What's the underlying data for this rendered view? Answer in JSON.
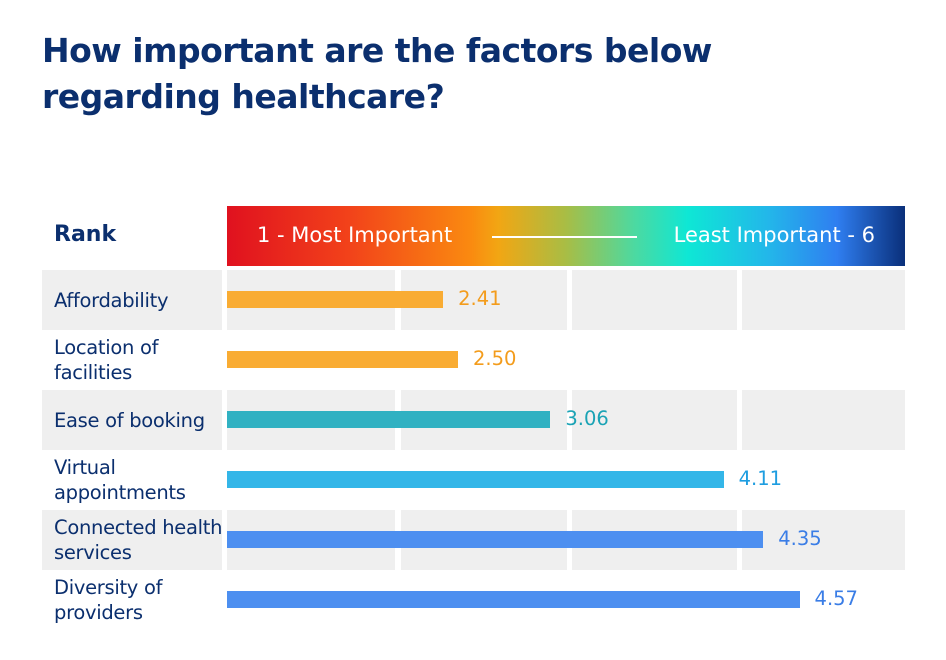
{
  "title": "How important are the factors below regarding healthcare?",
  "header": {
    "rank_label": "Rank",
    "scale_most": "1 - Most Important",
    "scale_least": "Least Important - 6"
  },
  "chart_data": {
    "type": "bar",
    "orientation": "horizontal",
    "title": "How important are the factors below regarding healthcare?",
    "xlabel": "1 - Most Important — Least Important - 6",
    "ylabel": "Rank",
    "xlim": [
      1,
      6
    ],
    "grid": true,
    "categories": [
      "Affordability",
      "Location of facilities",
      "Ease of booking",
      "Virtual appointments",
      "Connected health services",
      "Diversity of providers"
    ],
    "values": [
      2.41,
      2.5,
      3.06,
      4.11,
      4.35,
      4.57
    ],
    "value_labels": [
      "2.41",
      "2.50",
      "3.06",
      "4.11",
      "4.35",
      "4.57"
    ],
    "colors": [
      "#f9ac33",
      "#f9ac33",
      "#30b1c2",
      "#34b6e8",
      "#4d8ff0",
      "#4d8ff0"
    ],
    "label_colors": [
      "#f39c1c",
      "#f39c1c",
      "#1aa3b5",
      "#1e9de0",
      "#3a7de6",
      "#3a7de6"
    ]
  }
}
